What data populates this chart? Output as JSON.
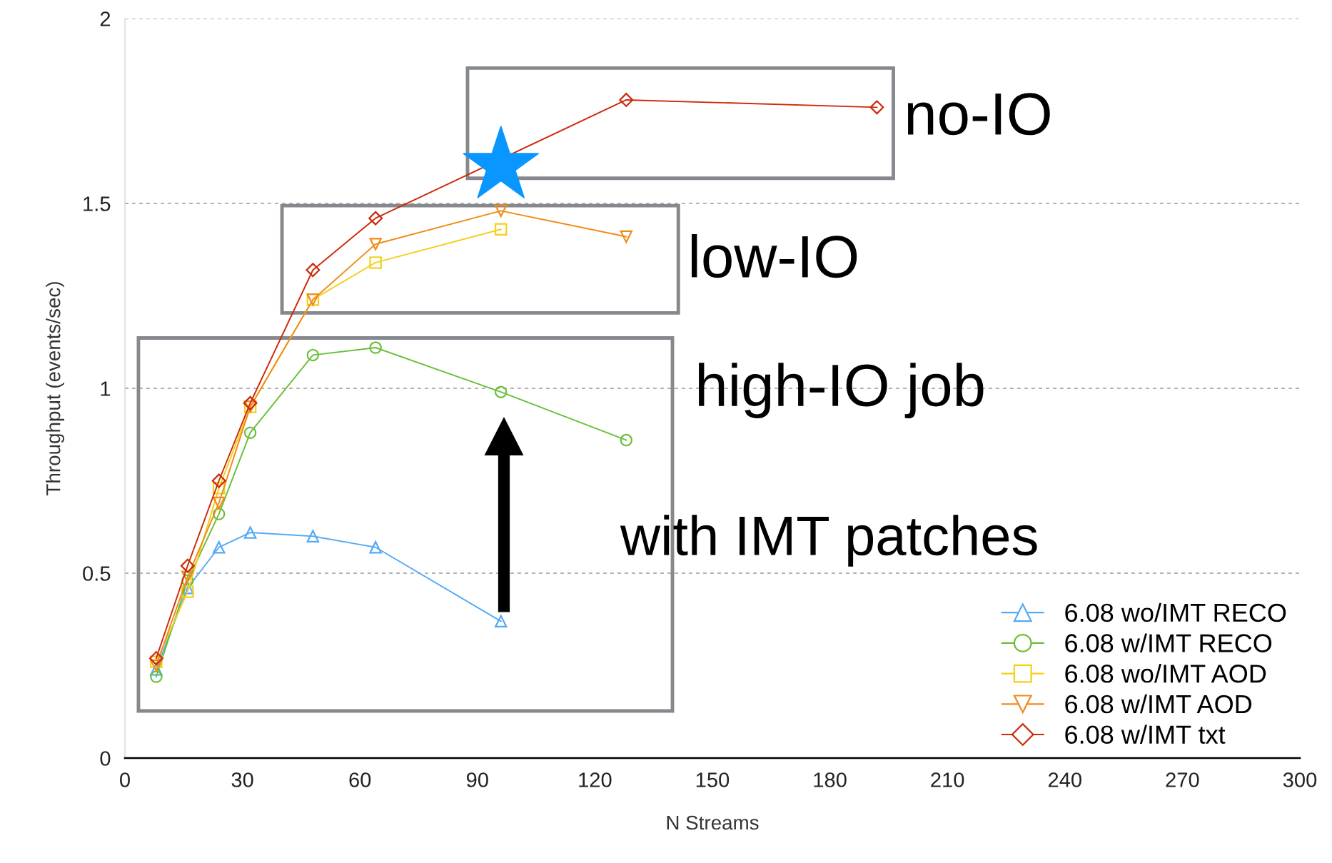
{
  "chart_data": {
    "type": "line",
    "xlabel": "N Streams",
    "ylabel": "Throughput (events/sec)",
    "x": [
      8,
      16,
      24,
      32,
      48,
      64,
      96,
      128,
      192
    ],
    "series": [
      {
        "name": "6.08 wo/IMT RECO",
        "color": "#55aaf5",
        "marker": "triangle",
        "values": [
          0.24,
          0.46,
          0.57,
          0.61,
          0.6,
          0.57,
          0.37,
          null,
          null
        ]
      },
      {
        "name": "6.08 w/IMT RECO",
        "color": "#6abf3a",
        "marker": "circle",
        "values": [
          0.22,
          0.48,
          0.66,
          0.88,
          1.09,
          1.11,
          0.99,
          0.86,
          null
        ]
      },
      {
        "name": "6.08 wo/IMT AOD",
        "color": "#f5cf1a",
        "marker": "square",
        "values": [
          0.26,
          0.45,
          0.73,
          0.95,
          1.24,
          1.34,
          1.43,
          null,
          null
        ]
      },
      {
        "name": "6.08 w/IMT AOD",
        "color": "#f08c1a",
        "marker": "triangle_down",
        "values": [
          0.25,
          0.49,
          0.69,
          0.95,
          1.24,
          1.39,
          1.48,
          1.41,
          null
        ]
      },
      {
        "name": "6.08 w/IMT txt",
        "color": "#cc2a0a",
        "marker": "diamond",
        "values": [
          0.27,
          0.52,
          0.75,
          0.96,
          1.32,
          1.46,
          null,
          1.78,
          1.76
        ]
      }
    ],
    "xlim": [
      0,
      300
    ],
    "xticks": [
      0,
      30,
      60,
      90,
      120,
      150,
      180,
      210,
      240,
      270,
      300
    ],
    "ylim": [
      0,
      2
    ],
    "yticks": [
      0,
      0.5,
      1,
      1.5,
      2
    ],
    "grid": "y",
    "legend": "bottom right",
    "line_style": "solid",
    "annotations": [
      "no-IO",
      "low-IO",
      "high-IO job",
      "with IMT patches"
    ]
  }
}
